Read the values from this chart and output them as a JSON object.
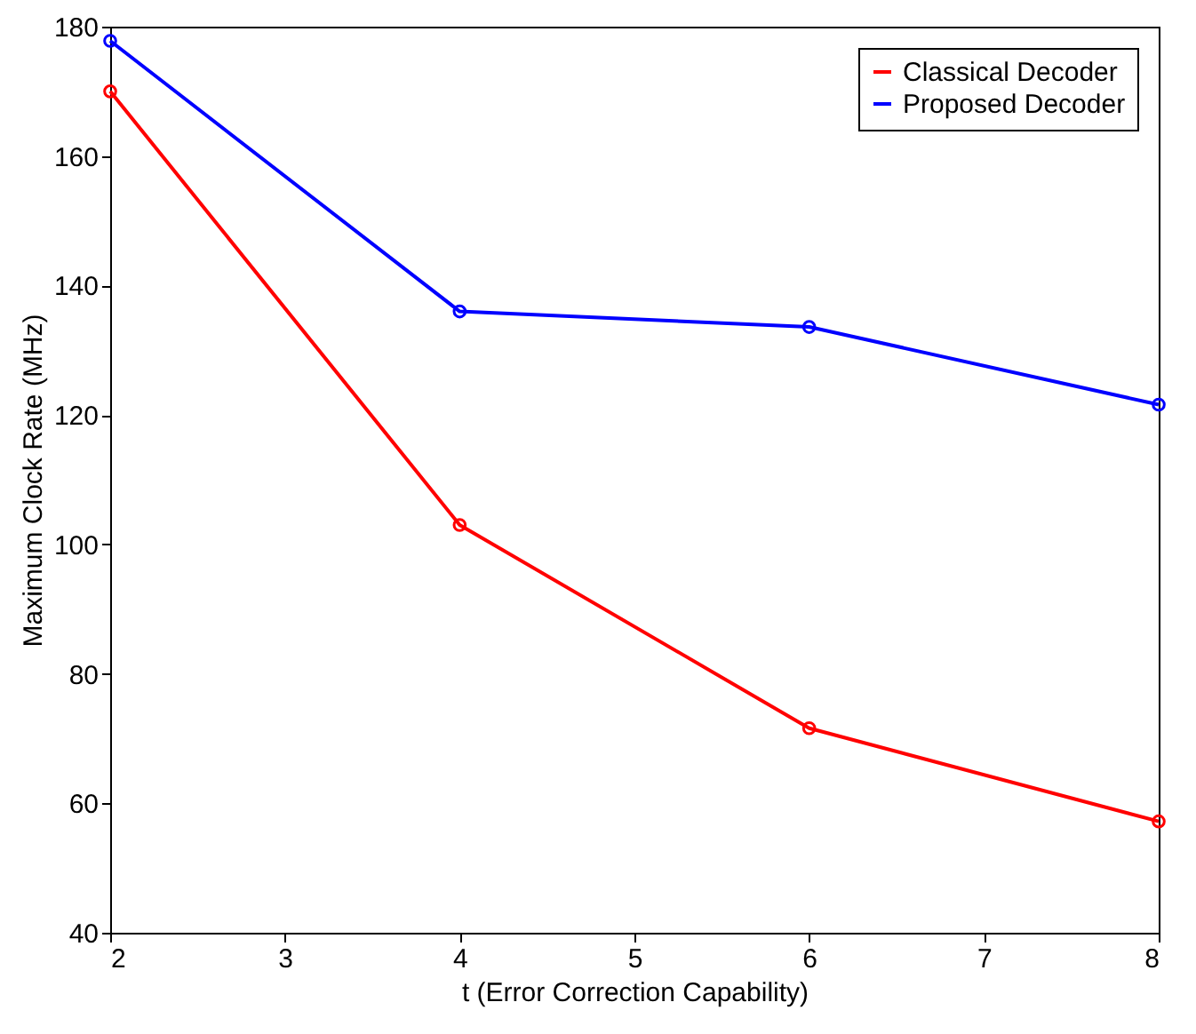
{
  "chart_data": {
    "type": "line",
    "xlabel": "t (Error Correction Capability)",
    "ylabel": "Maximum Clock Rate (MHz)",
    "x": [
      2,
      4,
      6,
      8
    ],
    "series": [
      {
        "name": "Classical Decoder",
        "color": "#ff0000",
        "values": [
          170,
          103,
          71.6,
          57.2
        ]
      },
      {
        "name": "Proposed Decoder",
        "color": "#0000ff",
        "values": [
          177.8,
          136,
          133.6,
          121.6
        ]
      }
    ],
    "xlim": [
      2,
      8
    ],
    "xticks": [
      2,
      3,
      4,
      5,
      6,
      7,
      8
    ],
    "ylim": [
      40,
      180
    ],
    "yticks": [
      40,
      60,
      80,
      100,
      120,
      140,
      160,
      180
    ],
    "legend": "top right",
    "marker": "circle",
    "line_style": "solid",
    "grid": false
  }
}
